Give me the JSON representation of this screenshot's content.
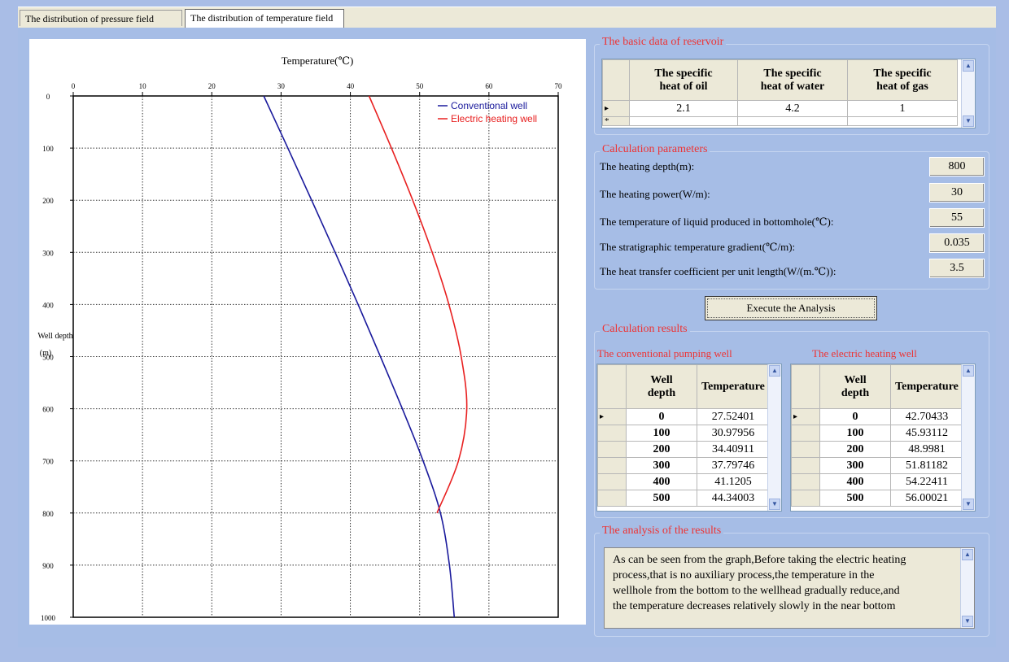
{
  "tabs": [
    {
      "label": "The distribution of pressure field"
    },
    {
      "label": "The distribution of temperature field"
    }
  ],
  "chart_data": {
    "type": "line",
    "title": "Temperature(℃)",
    "ylabel_line1": "Well depth",
    "ylabel_line2": "(m)",
    "xlim": [
      0,
      70
    ],
    "ylim": [
      0,
      1000
    ],
    "y_inverted": true,
    "x_axis_position": "top",
    "grid": true,
    "legend_position": "top-right",
    "xticks": [
      "0",
      "10",
      "20",
      "30",
      "40",
      "50",
      "60",
      "70"
    ],
    "yticks": [
      "0",
      "100",
      "200",
      "300",
      "400",
      "500",
      "600",
      "700",
      "800",
      "900",
      "1000"
    ],
    "series": [
      {
        "name": "Conventional well",
        "color": "#1a1a9c",
        "x": [
          27.5,
          30.98,
          34.41,
          37.8,
          41.12,
          44.34,
          47.5,
          50.5,
          53.0,
          54.3,
          55.0
        ],
        "y": [
          0,
          100,
          200,
          300,
          400,
          500,
          600,
          700,
          800,
          900,
          1000
        ]
      },
      {
        "name": "Electric heating well",
        "color": "#e82020",
        "x": [
          42.7,
          45.93,
          49.0,
          51.81,
          54.22,
          56.0,
          56.8,
          55.6,
          52.5
        ],
        "y": [
          0,
          100,
          200,
          300,
          400,
          500,
          600,
          700,
          800
        ]
      }
    ]
  },
  "basic_data": {
    "title": "The basic data of reservoir",
    "headers": [
      [
        "The specific",
        "heat of oil"
      ],
      [
        "The specific",
        "heat of water"
      ],
      [
        "The specific",
        "heat of gas"
      ]
    ],
    "row": [
      "2.1",
      "4.2",
      "1"
    ],
    "new_row_marker": "*",
    "current_row_marker": "▸"
  },
  "calc_params": {
    "title": "Calculation parameters",
    "items": [
      {
        "label": "The heating depth(m):",
        "value": "800"
      },
      {
        "label": "The heating power(W/m):",
        "value": "30"
      },
      {
        "label": "The temperature of liquid produced in bottomhole(℃):",
        "value": "55"
      },
      {
        "label": "The stratigraphic temperature gradient(℃/m):",
        "value": "0.035"
      },
      {
        "label": "The heat transfer coefficient per unit length(W/(m.℃)):",
        "value": "3.5"
      }
    ]
  },
  "execute_button": {
    "label": "Execute the Analysis"
  },
  "results": {
    "title": "Calculation results",
    "conventional": {
      "title": "The conventional pumping well",
      "headers": [
        [
          "Well",
          "depth"
        ],
        [
          "Temperature"
        ]
      ],
      "rows": [
        [
          "0",
          "27.52401"
        ],
        [
          "100",
          "30.97956"
        ],
        [
          "200",
          "34.40911"
        ],
        [
          "300",
          "37.79746"
        ],
        [
          "400",
          "41.1205"
        ],
        [
          "500",
          "44.34003"
        ]
      ]
    },
    "electric": {
      "title": "The electric heating well",
      "headers": [
        [
          "Well",
          "depth"
        ],
        [
          "Temperature"
        ]
      ],
      "rows": [
        [
          "0",
          "42.70433"
        ],
        [
          "100",
          "45.93112"
        ],
        [
          "200",
          "48.9981"
        ],
        [
          "300",
          "51.81182"
        ],
        [
          "400",
          "54.22411"
        ],
        [
          "500",
          "56.00021"
        ]
      ]
    }
  },
  "analysis": {
    "title": "The analysis of the results",
    "text": "As can be seen from the graph,Before taking the electric heating\nprocess,that is no auxiliary process,the temperature in the\nwellhole from the bottom to the wellhead gradually reduce,and\nthe temperature decreases relatively slowly in the near bottom"
  }
}
